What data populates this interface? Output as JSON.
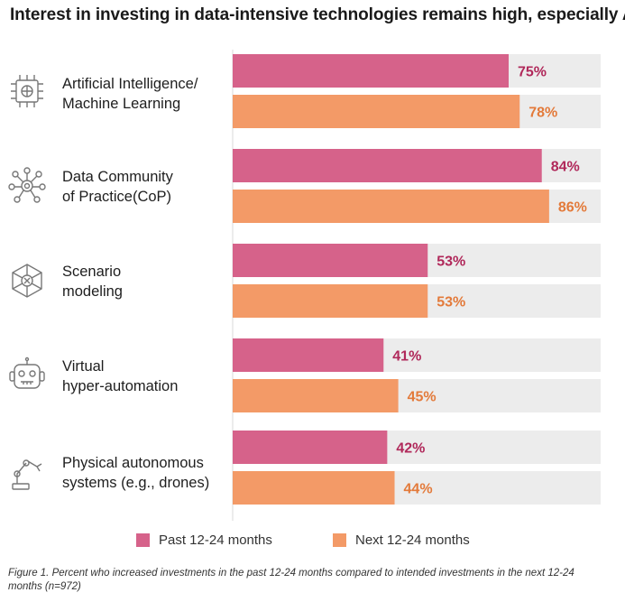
{
  "title": "Interest in investing in data-intensive technologies remains high, especially AI",
  "chart_data": {
    "type": "bar",
    "orientation": "horizontal",
    "categories": [
      [
        "Artificial Intelligence/",
        "Machine Learning"
      ],
      [
        "Data Community",
        "of Practice(CoP)"
      ],
      [
        "Scenario",
        "modeling"
      ],
      [
        "Virtual",
        "hyper-automation"
      ],
      [
        "Physical autonomous",
        "systems (e.g., drones)"
      ]
    ],
    "category_icons": [
      "circuit-chip-icon",
      "network-nodes-icon",
      "hexagon-network-icon",
      "robot-face-icon",
      "robotic-arm-icon"
    ],
    "series": [
      {
        "name": "Past 12-24 months",
        "color": "#d6628a",
        "label_color": "#b0285a",
        "values": [
          75,
          84,
          53,
          41,
          42
        ]
      },
      {
        "name": "Next 12-24 months",
        "color": "#f39a67",
        "label_color": "#e37a3a",
        "values": [
          78,
          86,
          53,
          45,
          44
        ]
      }
    ],
    "value_suffix": "%",
    "xlim": [
      0,
      100
    ],
    "background_track_color": "#ececec",
    "legend_position": "bottom"
  },
  "caption": "Figure 1. Percent who increased investments in the past 12-24 months compared to intended investments in the next 12-24 months (n=972)"
}
